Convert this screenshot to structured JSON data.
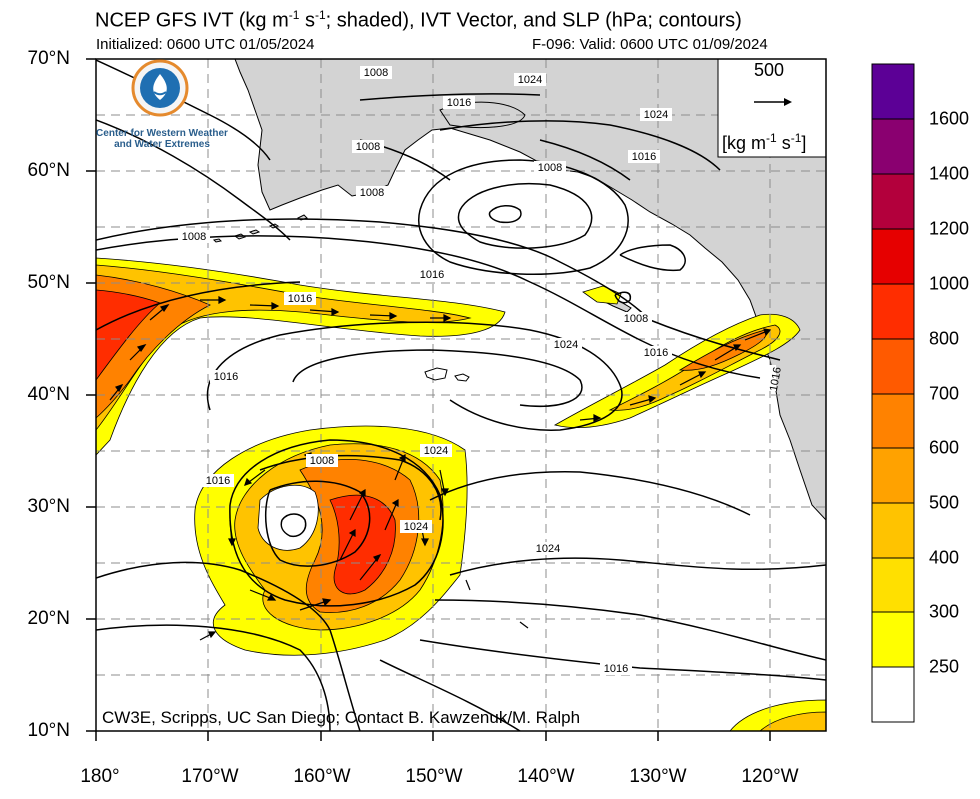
{
  "header": {
    "title_main": "NCEP GFS IVT (kg m",
    "title_exp1": "-1",
    "title_mid": " s",
    "title_exp2": "-1",
    "title_end": "; shaded), IVT Vector, and SLP (hPa; contours)",
    "initialized": "Initialized: 0600 UTC 01/05/2024",
    "valid": "F-096: Valid: 0600 UTC 01/09/2024"
  },
  "logo": {
    "icon": "water-drop-sun-icon",
    "line1": "Center for Western Weather",
    "line2": "and Water Extremes"
  },
  "map": {
    "lat_labels": [
      "70°N",
      "60°N",
      "50°N",
      "40°N",
      "30°N",
      "20°N",
      "10°N"
    ],
    "lon_labels": [
      "180°",
      "170°W",
      "160°W",
      "150°W",
      "140°W",
      "130°W",
      "120°W"
    ],
    "slp_labels": [
      "1008",
      "1024",
      "1016",
      "1024",
      "1008",
      "1016",
      "1008",
      "1008",
      "1008",
      "1016",
      "1016",
      "1008",
      "1016",
      "1024",
      "1016",
      "1024",
      "1024",
      "1008",
      "1016",
      "1024",
      "1016"
    ],
    "credit": "CW3E, Scripps, UC San Diego; Contact B. Kawzenuk/M. Ralph",
    "reference_vector": {
      "value": "500",
      "unit_main": "[kg m",
      "unit_exp1": "-1",
      "unit_mid": " s",
      "unit_exp2": "-1",
      "unit_end": "]"
    }
  },
  "colorbar": {
    "labels": [
      "1600",
      "1400",
      "1200",
      "1000",
      "800",
      "700",
      "600",
      "500",
      "400",
      "300",
      "250"
    ],
    "colors": [
      "#ffffff",
      "#ffff00",
      "#ffe000",
      "#ffc300",
      "#ffa200",
      "#ff8200",
      "#ff5a00",
      "#ff2d00",
      "#e60000",
      "#b3003c",
      "#8a0070",
      "#5c0096"
    ]
  },
  "colors": {
    "land": "#d3d3d3",
    "ocean": "#ffffff",
    "grid": "#8c8c8c",
    "contour": "#000000"
  }
}
